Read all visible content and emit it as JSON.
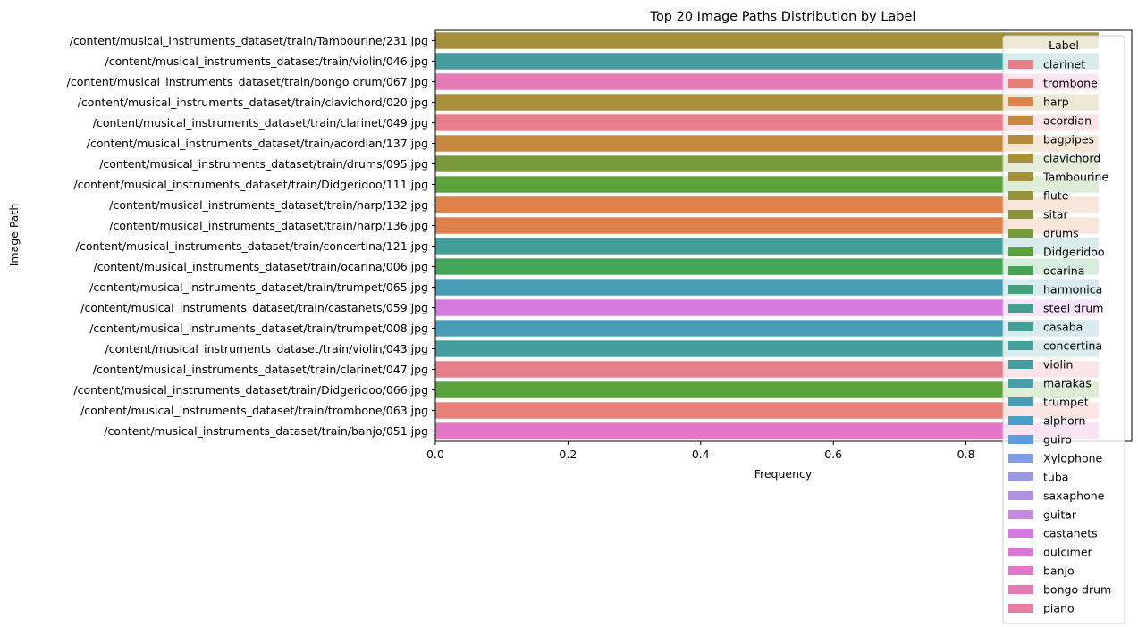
{
  "chart_data": {
    "type": "bar",
    "orientation": "horizontal",
    "title": "Top 20 Image Paths Distribution by Label",
    "xlabel": "Frequency",
    "ylabel": "Image Path",
    "xlim": [
      0,
      1.05
    ],
    "xticks": [
      0.0,
      0.2,
      0.4,
      0.6,
      0.8
    ],
    "xtick_labels": [
      "0.0",
      "0.2",
      "0.4",
      "0.6",
      "0.8"
    ],
    "grid": false,
    "legend_position": "upper-right",
    "bars": [
      {
        "path": "/content/musical_instruments_dataset/train/Tambourine/231.jpg",
        "label": "Tambourine",
        "value": 1
      },
      {
        "path": "/content/musical_instruments_dataset/train/violin/046.jpg",
        "label": "violin",
        "value": 1
      },
      {
        "path": "/content/musical_instruments_dataset/train/bongo drum/067.jpg",
        "label": "bongo drum",
        "value": 1
      },
      {
        "path": "/content/musical_instruments_dataset/train/clavichord/020.jpg",
        "label": "clavichord",
        "value": 1
      },
      {
        "path": "/content/musical_instruments_dataset/train/clarinet/049.jpg",
        "label": "clarinet",
        "value": 1
      },
      {
        "path": "/content/musical_instruments_dataset/train/acordian/137.jpg",
        "label": "acordian",
        "value": 1
      },
      {
        "path": "/content/musical_instruments_dataset/train/drums/095.jpg",
        "label": "drums",
        "value": 1
      },
      {
        "path": "/content/musical_instruments_dataset/train/Didgeridoo/111.jpg",
        "label": "Didgeridoo",
        "value": 1
      },
      {
        "path": "/content/musical_instruments_dataset/train/harp/132.jpg",
        "label": "harp",
        "value": 1
      },
      {
        "path": "/content/musical_instruments_dataset/train/harp/136.jpg",
        "label": "harp",
        "value": 1
      },
      {
        "path": "/content/musical_instruments_dataset/train/concertina/121.jpg",
        "label": "concertina",
        "value": 1
      },
      {
        "path": "/content/musical_instruments_dataset/train/ocarina/006.jpg",
        "label": "ocarina",
        "value": 1
      },
      {
        "path": "/content/musical_instruments_dataset/train/trumpet/065.jpg",
        "label": "trumpet",
        "value": 1
      },
      {
        "path": "/content/musical_instruments_dataset/train/castanets/059.jpg",
        "label": "castanets",
        "value": 1
      },
      {
        "path": "/content/musical_instruments_dataset/train/trumpet/008.jpg",
        "label": "trumpet",
        "value": 1
      },
      {
        "path": "/content/musical_instruments_dataset/train/violin/043.jpg",
        "label": "violin",
        "value": 1
      },
      {
        "path": "/content/musical_instruments_dataset/train/clarinet/047.jpg",
        "label": "clarinet",
        "value": 1
      },
      {
        "path": "/content/musical_instruments_dataset/train/Didgeridoo/066.jpg",
        "label": "Didgeridoo",
        "value": 1
      },
      {
        "path": "/content/musical_instruments_dataset/train/trombone/063.jpg",
        "label": "trombone",
        "value": 1
      },
      {
        "path": "/content/musical_instruments_dataset/train/banjo/051.jpg",
        "label": "banjo",
        "value": 1
      }
    ],
    "legend": {
      "title": "Label",
      "entries": [
        {
          "name": "clarinet",
          "color": "#e87d8b"
        },
        {
          "name": "trombone",
          "color": "#e8807a"
        },
        {
          "name": "harp",
          "color": "#e0814a"
        },
        {
          "name": "acordian",
          "color": "#c8873f"
        },
        {
          "name": "bagpipes",
          "color": "#b68b3c"
        },
        {
          "name": "clavichord",
          "color": "#a88f3b"
        },
        {
          "name": "Tambourine",
          "color": "#a4903a"
        },
        {
          "name": "flute",
          "color": "#969239"
        },
        {
          "name": "sitar",
          "color": "#89943a"
        },
        {
          "name": "drums",
          "color": "#799a3b"
        },
        {
          "name": "Didgeridoo",
          "color": "#5ba23d"
        },
        {
          "name": "ocarina",
          "color": "#43a456"
        },
        {
          "name": "harmonica",
          "color": "#42a17a"
        },
        {
          "name": "steel drum",
          "color": "#43a08b"
        },
        {
          "name": "casaba",
          "color": "#439f93"
        },
        {
          "name": "concertina",
          "color": "#449e99"
        },
        {
          "name": "violin",
          "color": "#459d9f"
        },
        {
          "name": "marakas",
          "color": "#469ca8"
        },
        {
          "name": "trumpet",
          "color": "#489cb6"
        },
        {
          "name": "alphorn",
          "color": "#4c9ccb"
        },
        {
          "name": "guiro",
          "color": "#5b9de0"
        },
        {
          "name": "Xylophone",
          "color": "#7f9ce6"
        },
        {
          "name": "tuba",
          "color": "#9c98e6"
        },
        {
          "name": "saxaphone",
          "color": "#b191e4"
        },
        {
          "name": "guitar",
          "color": "#c589e2"
        },
        {
          "name": "castanets",
          "color": "#d57ae1"
        },
        {
          "name": "dulcimer",
          "color": "#de74d3"
        },
        {
          "name": "banjo",
          "color": "#e177c6"
        },
        {
          "name": "bongo drum",
          "color": "#e57bb5"
        },
        {
          "name": "piano",
          "color": "#e87ca1"
        }
      ]
    }
  }
}
